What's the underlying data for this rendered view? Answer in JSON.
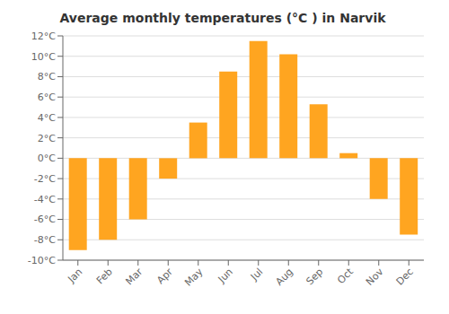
{
  "chart_data": {
    "type": "bar",
    "title": "Average monthly temperatures (°C ) in Narvik",
    "categories": [
      "Jan",
      "Feb",
      "Mar",
      "Apr",
      "May",
      "Jun",
      "Jul",
      "Aug",
      "Sep",
      "Oct",
      "Nov",
      "Dec"
    ],
    "values": [
      -9.0,
      -8.0,
      -6.0,
      -2.0,
      3.5,
      8.5,
      11.5,
      10.2,
      5.3,
      0.5,
      -4.0,
      -7.5
    ],
    "color": "#FFA520",
    "ylim": [
      -10,
      12
    ],
    "yticks": [
      {
        "value": -10,
        "label": "-10°C"
      },
      {
        "value": -8,
        "label": "-8°C"
      },
      {
        "value": -6,
        "label": "-6°C"
      },
      {
        "value": -4,
        "label": "-4°C"
      },
      {
        "value": -2,
        "label": "-2°C"
      },
      {
        "value": 0,
        "label": "0°C"
      },
      {
        "value": 2,
        "label": "2°C"
      },
      {
        "value": 4,
        "label": "4°C"
      },
      {
        "value": 6,
        "label": "6°C"
      },
      {
        "value": 8,
        "label": "8°C"
      },
      {
        "value": 10,
        "label": "10°C"
      },
      {
        "value": 12,
        "label": "12°C"
      }
    ],
    "grid": true
  }
}
